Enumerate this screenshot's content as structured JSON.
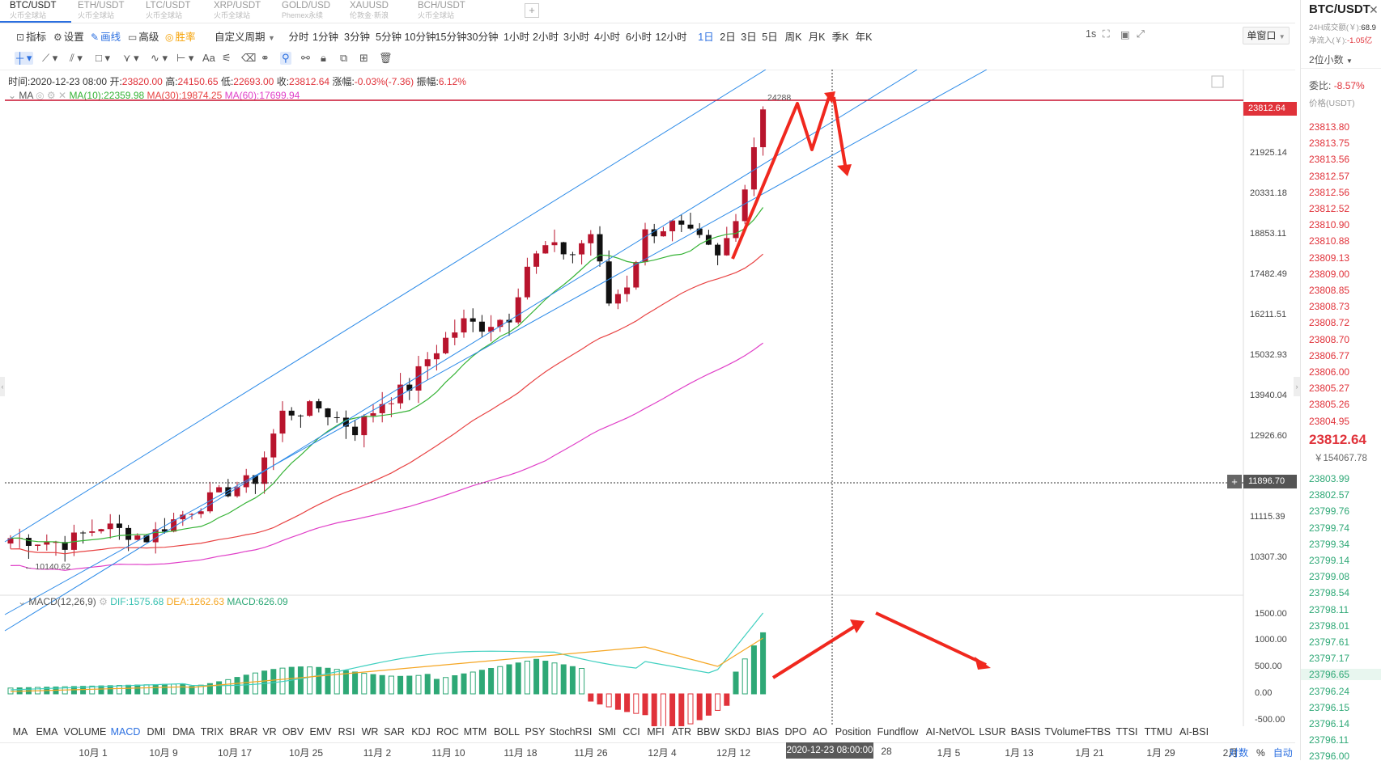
{
  "symbol_tabs": [
    {
      "pair": "BTC/USDT",
      "exchange": "火币全球站",
      "active": true
    },
    {
      "pair": "ETH/USDT",
      "exchange": "火币全球站",
      "active": false
    },
    {
      "pair": "LTC/USDT",
      "exchange": "火币全球站",
      "active": false
    },
    {
      "pair": "XRP/USDT",
      "exchange": "火币全球站",
      "active": false
    },
    {
      "pair": "GOLD/USD",
      "exchange": "Phemex永续",
      "active": false
    },
    {
      "pair": "XAUUSD",
      "exchange": "伦敦金·新浪",
      "active": false
    },
    {
      "pair": "BCH/USDT",
      "exchange": "火币全球站",
      "active": false
    }
  ],
  "toolbar": {
    "indicator": "指标",
    "settings": "设置",
    "draw": "画线",
    "advanced": "高级",
    "winrate": "胜率",
    "custom_period": "自定义周期",
    "periods": [
      "分时",
      "1分钟",
      "3分钟",
      "5分钟",
      "10分钟",
      "15分钟",
      "30分钟",
      "1小时",
      "2小时",
      "3小时",
      "4小时",
      "6小时",
      "12小时",
      "1日",
      "2日",
      "3日",
      "5日",
      "周K",
      "月K",
      "季K",
      "年K"
    ],
    "active_period": "1日",
    "interval": "1s",
    "window": "单窗口"
  },
  "info": {
    "time_label": "时间:",
    "time": "2020-12-23 08:00",
    "open_label": "开:",
    "open": "23820.00",
    "high_label": "高:",
    "high": "24150.65",
    "low_label": "低:",
    "low": "22693.00",
    "close_label": "收:",
    "close": "23812.64",
    "change_label": "涨幅:",
    "change": "-0.03%(-7.36)",
    "amp_label": "振幅:",
    "amp": "6.12%"
  },
  "ma_legend": {
    "name": "MA",
    "ma10": "MA(10):22359.98",
    "ma30": "MA(30):19874.25",
    "ma60": "MA(60):17699.94"
  },
  "macd_legend": {
    "name": "MACD(12,26,9)",
    "dif": "DIF:1575.68",
    "dea": "DEA:1262.63",
    "macd": "MACD:626.09"
  },
  "price_axis": [
    "21925.14",
    "20331.18",
    "18853.11",
    "17482.49",
    "16211.51",
    "15032.93",
    "13940.04",
    "12926.60",
    "11115.39",
    "10307.30"
  ],
  "price_label_current": "23812.64",
  "price_label_cross": "11896.70",
  "high_marker": "24288",
  "low_marker": "10140.62",
  "macd_axis": [
    "1500.00",
    "1000.00",
    "500.00",
    "0.00",
    "-500.00"
  ],
  "indicators": [
    "MA",
    "EMA",
    "VOLUME",
    "MACD",
    "DMI",
    "DMA",
    "TRIX",
    "BRAR",
    "VR",
    "OBV",
    "EMV",
    "RSI",
    "WR",
    "SAR",
    "KDJ",
    "ROC",
    "MTM",
    "BOLL",
    "PSY",
    "StochRSI",
    "SMI",
    "CCI",
    "MFI",
    "ATR",
    "BBW",
    "SKDJ",
    "BIAS",
    "DPO",
    "AO",
    "Position",
    "Fundflow",
    "AI-NetVOL",
    "LSUR",
    "BASIS",
    "TVolume",
    "FTBS",
    "TTSI",
    "TTMU",
    "AI-BSI"
  ],
  "active_indicator": "MACD",
  "time_axis": [
    "10月 1",
    "10月 9",
    "10月 17",
    "10月 25",
    "11月 2",
    "11月 10",
    "11月 18",
    "11月 26",
    "12月 4",
    "12月 12",
    "28",
    "1月 5",
    "1月 13",
    "1月 21",
    "1月 29",
    "2月"
  ],
  "cross_time": "2020-12-23 08:00:00",
  "axis_controls": {
    "log": "对数",
    "pct": "%",
    "auto": "自动"
  },
  "right_panel": {
    "title": "BTC/USDT",
    "vol_label": "24H成交额(￥):",
    "vol_value": "68.9",
    "netflow_label": "净流入(￥):",
    "netflow_value": "-1.05亿",
    "decimals": "2位小数",
    "ratio_label": "委比:",
    "ratio_value": "-8.57%",
    "price_header": "价格(USDT)",
    "asks": [
      "23813.80",
      "23813.75",
      "23813.56",
      "23812.57",
      "23812.56",
      "23812.52",
      "23810.90",
      "23810.88",
      "23809.13",
      "23809.00",
      "23808.85",
      "23808.73",
      "23808.72",
      "23808.70",
      "23806.77",
      "23806.00",
      "23805.27",
      "23805.26",
      "23804.95"
    ],
    "last": "23812.64",
    "last_cny": "￥154067.78",
    "bids": [
      "23803.99",
      "23802.57",
      "23799.76",
      "23799.74",
      "23799.34",
      "23799.14",
      "23799.08",
      "23798.54",
      "23798.11",
      "23798.01",
      "23797.61",
      "23797.17",
      "23796.65",
      "23796.24",
      "23796.15",
      "23796.14",
      "23796.11",
      "23796.00"
    ]
  },
  "colors": {
    "up": "#e0323a",
    "down": "#2ea876",
    "ma10": "#36b336",
    "ma30": "#e84343",
    "ma60": "#e040c8",
    "channel": "#2b8ae8",
    "dif": "#40d0c0",
    "dea": "#f5a623",
    "arrow": "#f0281e"
  }
}
